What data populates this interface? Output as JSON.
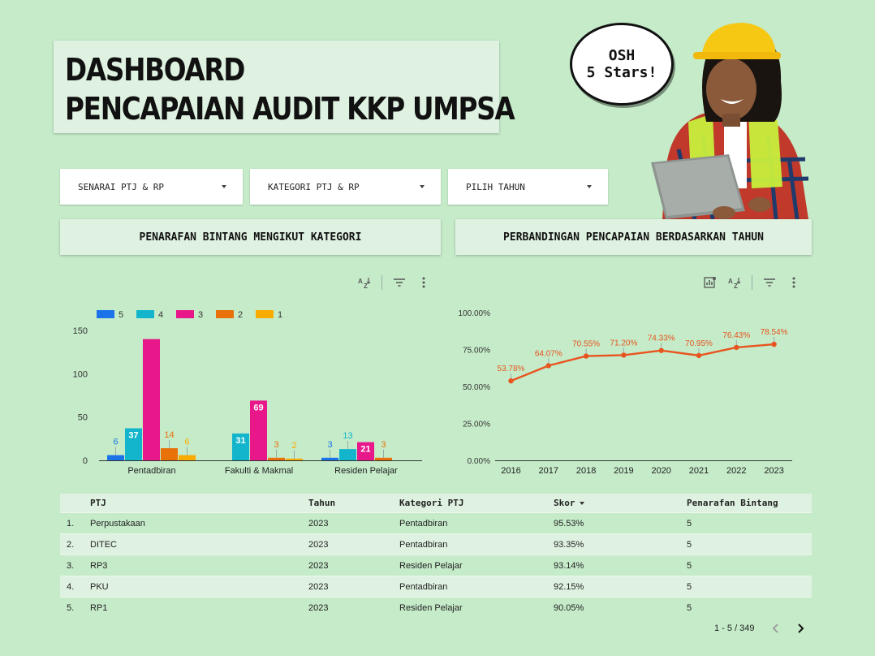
{
  "header": {
    "title_line1": "DASHBOARD",
    "title_line2": "PENCAPAIAN AUDIT KKP UMPSA",
    "bubble_line1": "OSH",
    "bubble_line2": "5 Stars!"
  },
  "filters": [
    {
      "label": "SENARAI PTJ & RP"
    },
    {
      "label": "KATEGORI PTJ & RP"
    },
    {
      "label": "PILIH TAHUN"
    }
  ],
  "sections": {
    "left": "PENARAFAN BINTANG MENGIKUT KATEGORI",
    "right": "PERBANDINGAN PENCAPAIAN BERDASARKAN TAHUN"
  },
  "icons": [
    "sort-az-icon",
    "filter-icon",
    "more-vert-icon",
    "chart-insights-icon",
    "chevron-left-icon",
    "chevron-right-icon",
    "dropdown-caret-icon"
  ],
  "chart_data": [
    {
      "type": "bar",
      "categories": [
        "Pentadbiran",
        "Fakulti & Makmal",
        "Residen Pelajar"
      ],
      "series": [
        {
          "name": "5",
          "color": "#1a73e8",
          "values": [
            6,
            0,
            3
          ],
          "labels": [
            "6",
            "",
            "3"
          ]
        },
        {
          "name": "4",
          "color": "#12b5cb",
          "values": [
            37,
            31,
            13
          ],
          "labels": [
            "37",
            "31",
            "13"
          ]
        },
        {
          "name": "3",
          "color": "#e8178a",
          "values": [
            140,
            69,
            21
          ],
          "labels": [
            "",
            "69",
            "21"
          ]
        },
        {
          "name": "2",
          "color": "#e8710a",
          "values": [
            14,
            3,
            3
          ],
          "labels": [
            "14",
            "3",
            "3"
          ]
        },
        {
          "name": "1",
          "color": "#f9ab00",
          "values": [
            6,
            2,
            0
          ],
          "labels": [
            "6",
            "2",
            ""
          ]
        }
      ],
      "yticks": [
        "0",
        "50",
        "100",
        "150"
      ],
      "ylim": [
        0,
        150
      ],
      "legend": "top-left"
    },
    {
      "type": "line",
      "x": [
        "2016",
        "2017",
        "2018",
        "2019",
        "2020",
        "2021",
        "2022",
        "2023"
      ],
      "values": [
        53.78,
        64.07,
        70.55,
        71.2,
        74.33,
        70.95,
        76.43,
        78.54
      ],
      "labels": [
        "53.78%",
        "64.07%",
        "70.55%",
        "71.20%",
        "74.33%",
        "70.95%",
        "76.43%",
        "78.54%"
      ],
      "color": "#e8541e",
      "yticks": [
        "0.00%",
        "25.00%",
        "50.00%",
        "75.00%",
        "100.00%"
      ],
      "ylim": [
        0,
        100
      ]
    }
  ],
  "table": {
    "columns": {
      "ptj": "PTJ",
      "tahun": "Tahun",
      "kategori": "Kategori PTJ",
      "skor": "Skor",
      "bintang": "Penarafan Bintang"
    },
    "rows": [
      {
        "no": "1.",
        "ptj": "Perpustakaan",
        "tahun": "2023",
        "kategori": "Pentadbiran",
        "skor": "95.53%",
        "bintang": "5"
      },
      {
        "no": "2.",
        "ptj": "DITEC",
        "tahun": "2023",
        "kategori": "Pentadbiran",
        "skor": "93.35%",
        "bintang": "5"
      },
      {
        "no": "3.",
        "ptj": "RP3",
        "tahun": "2023",
        "kategori": "Residen Pelajar",
        "skor": "93.14%",
        "bintang": "5"
      },
      {
        "no": "4.",
        "ptj": "PKU",
        "tahun": "2023",
        "kategori": "Pentadbiran",
        "skor": "92.15%",
        "bintang": "5"
      },
      {
        "no": "5.",
        "ptj": "RP1",
        "tahun": "2023",
        "kategori": "Residen Pelajar",
        "skor": "90.05%",
        "bintang": "5"
      }
    ],
    "pagination": "1 - 5 / 349"
  }
}
